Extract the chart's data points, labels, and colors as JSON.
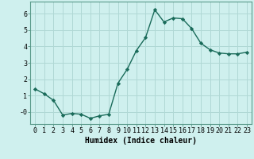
{
  "x": [
    0,
    1,
    2,
    3,
    4,
    5,
    6,
    7,
    8,
    9,
    10,
    11,
    12,
    13,
    14,
    15,
    16,
    17,
    18,
    19,
    20,
    21,
    22,
    23
  ],
  "y": [
    1.4,
    1.1,
    0.7,
    -0.2,
    -0.1,
    -0.15,
    -0.4,
    -0.25,
    -0.15,
    1.75,
    2.6,
    3.75,
    4.55,
    6.25,
    5.5,
    5.75,
    5.7,
    5.1,
    4.2,
    3.8,
    3.6,
    3.55,
    3.55,
    3.65
  ],
  "line_color": "#1a6b5a",
  "marker": "D",
  "markersize": 2.2,
  "linewidth": 1.0,
  "bg_color": "#cff0ee",
  "grid_color": "#b0d8d5",
  "xlabel": "Humidex (Indice chaleur)",
  "xlabel_fontsize": 7,
  "tick_fontsize": 6,
  "ylim": [
    -0.75,
    6.75
  ],
  "ytick_vals": [
    0,
    1,
    2,
    3,
    4,
    5,
    6
  ],
  "ytick_labels": [
    "-0",
    "1",
    "2",
    "3",
    "4",
    "5",
    "6"
  ],
  "xtick_labels": [
    "0",
    "1",
    "2",
    "3",
    "4",
    "5",
    "6",
    "7",
    "8",
    "9",
    "10",
    "11",
    "12",
    "13",
    "14",
    "15",
    "16",
    "17",
    "18",
    "19",
    "20",
    "21",
    "22",
    "23"
  ],
  "xlim": [
    -0.5,
    23.5
  ]
}
